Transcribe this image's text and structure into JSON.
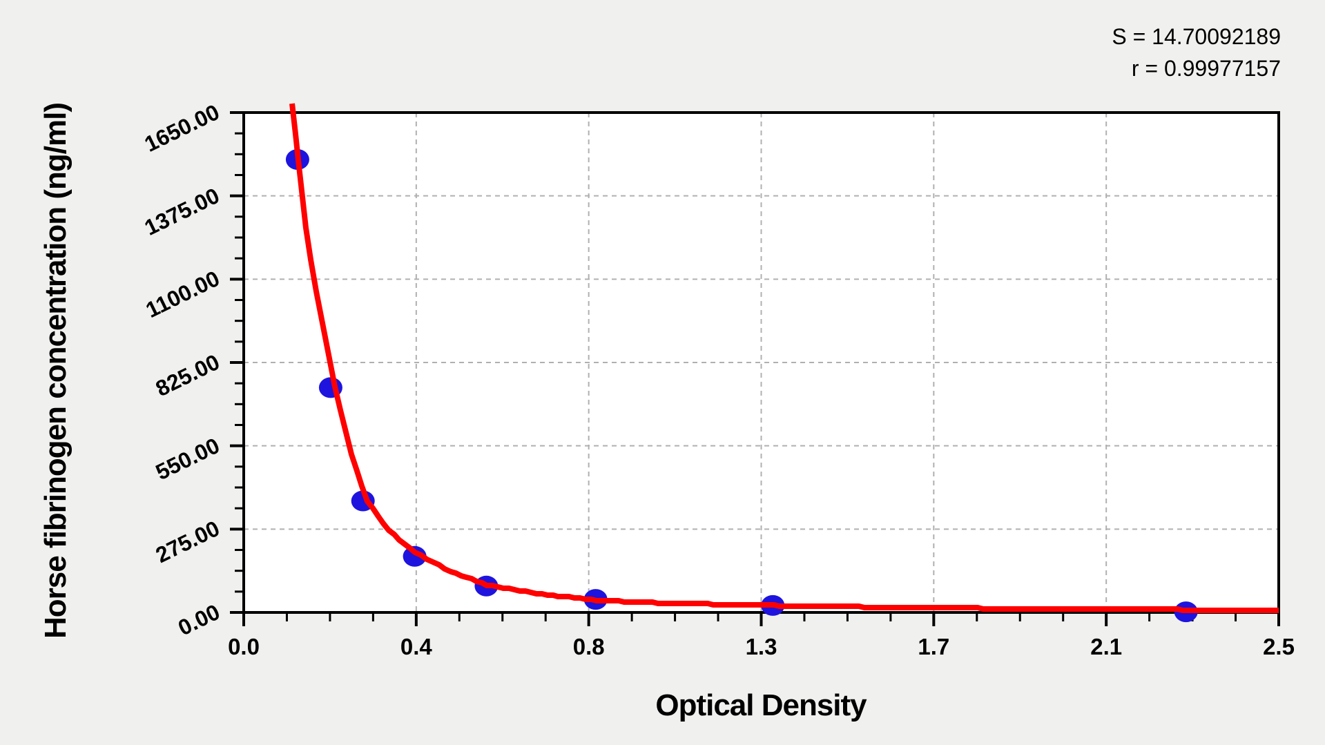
{
  "chart_data": {
    "type": "scatter",
    "title": "",
    "xlabel": "Optical Density",
    "ylabel": "Horse fibrinogen concentration (ng/ml)",
    "xlim": [
      0,
      2.5
    ],
    "ylim": [
      0,
      1650
    ],
    "x_tick_labels": [
      "0.0",
      "0.4",
      "0.8",
      "1.3",
      "1.7",
      "2.1",
      "2.5"
    ],
    "y_tick_labels": [
      "0.00",
      "275.00",
      "550.00",
      "825.00",
      "1100.00",
      "1375.00",
      "1650.00"
    ],
    "minor_divisions_per_major": 4,
    "grid": {
      "style": "dashed",
      "color": "#b0b0b0"
    },
    "series": [
      {
        "name": "standard-points",
        "marker": "ellipse",
        "color": "#1e14de",
        "points": [
          {
            "x": 0.13,
            "y": 1495
          },
          {
            "x": 0.21,
            "y": 742
          },
          {
            "x": 0.288,
            "y": 368
          },
          {
            "x": 0.413,
            "y": 185
          },
          {
            "x": 0.586,
            "y": 87
          },
          {
            "x": 0.85,
            "y": 43
          },
          {
            "x": 1.278,
            "y": 23
          },
          {
            "x": 2.276,
            "y": 2
          }
        ]
      }
    ],
    "fit_curve": {
      "name": "fitted-standard-curve",
      "color": "#ff0000",
      "points": [
        [
          0.117,
          1680
        ],
        [
          0.125,
          1580
        ],
        [
          0.132,
          1495
        ],
        [
          0.15,
          1270
        ],
        [
          0.175,
          1060
        ],
        [
          0.22,
          743
        ],
        [
          0.26,
          520
        ],
        [
          0.299,
          367
        ],
        [
          0.35,
          270
        ],
        [
          0.414,
          198
        ],
        [
          0.5,
          135
        ],
        [
          0.587,
          91
        ],
        [
          0.72,
          60
        ],
        [
          0.852,
          41
        ],
        [
          1.0,
          31
        ],
        [
          1.281,
          23
        ],
        [
          1.5,
          18
        ],
        [
          1.746,
          14
        ],
        [
          2.0,
          11
        ],
        [
          2.282,
          9
        ],
        [
          2.5,
          7
        ]
      ]
    },
    "stats": {
      "s_text": "S = 14.70092189",
      "r_text": "r = 0.99977157",
      "S": 14.70092189,
      "r": 0.99977157
    },
    "colors": {
      "curve": "#ff0000",
      "points": "#1e14de",
      "grid": "#b0b0b0",
      "axis": "#000000",
      "plot_bg": "#ffffff",
      "page_bg": "#f0f0ee"
    }
  }
}
